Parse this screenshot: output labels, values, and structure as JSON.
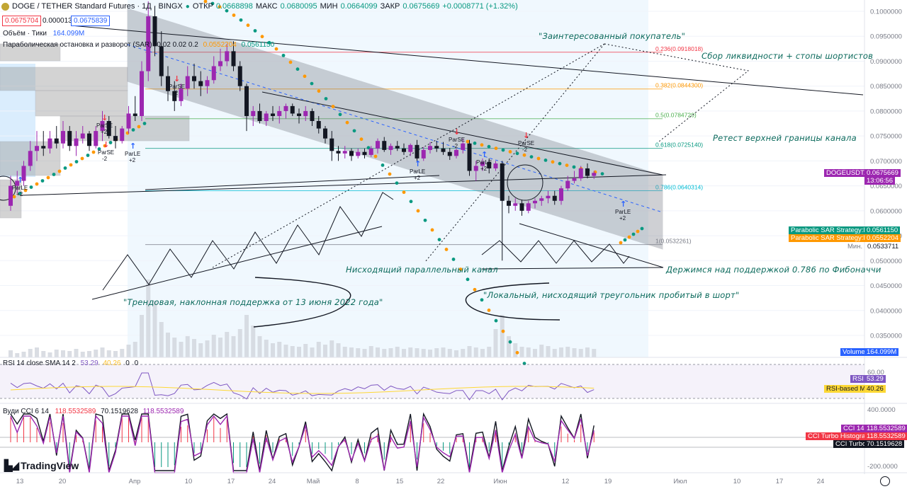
{
  "header": {
    "symbol": "DOGE / TETHER Standard Futures · 1Д · BINGX",
    "open_label": "ОТКР",
    "open_value": "0.0668898",
    "high_label": "МАКС",
    "high_value": "0.0680095",
    "low_label": "МИН",
    "low_value": "0.0664099",
    "close_label": "ЗАКР",
    "close_value": "0.0675669",
    "change": "+0.0008771 (+1.32%)"
  },
  "price_boxes": {
    "bid": "0.0675704",
    "spread": "0.0000135",
    "ask": "0.0675839"
  },
  "indicators": {
    "volume_label": "Объём · Тики",
    "volume_value": "164.099M",
    "sar_label": "Параболическая остановка и разворот (SAR)",
    "sar_params": "0.02 0.02 0.2",
    "sar_v1": "0.0552204",
    "sar_v2": "0.0561150",
    "rsi_label": "RSI 14 close SMA 14 2",
    "rsi_v1": "53.29",
    "rsi_v2": "40.26",
    "rsi_v3": "0",
    "rsi_v4": "0",
    "cci_label": "Вуди CCI 6 14",
    "cci_v1": "118.5532589",
    "cci_v2": "70.1519628",
    "cci_v3": "118.5532589"
  },
  "price_axis": {
    "ticks": [
      "0.1000000",
      "0.0950000",
      "0.0900000",
      "0.0850000",
      "0.0800000",
      "0.0750000",
      "0.0700000",
      "0.0650000",
      "0.0600000",
      "0.0550000",
      "0.0500000",
      "0.0450000",
      "0.0400000",
      "0.0350000"
    ],
    "current_tag": "DOGEUSDT.PS",
    "current_price": "0.0675669",
    "countdown": "13:06:56",
    "sar_tag1_label": "Parabolic SAR Strategy:Plot",
    "sar_tag1_value": "0.0561150",
    "sar_tag2_label": "Parabolic SAR Strategy:Plot",
    "sar_tag2_value": "0.0552204",
    "min_label": "Мин.",
    "min_value": "0.0533711",
    "volume_tag": "Volume",
    "volume_tag_value": "164.099M"
  },
  "rsi_axis": {
    "tick": "60.00",
    "rsi_tag": "RSI",
    "rsi_value": "53.29",
    "ma_tag": "RSI-based MA",
    "ma_value": "40.26"
  },
  "cci_axis": {
    "top": "400.0000",
    "bottom": "-200.0000",
    "cci14_tag": "CCI 14",
    "cci14_value": "118.5532589",
    "hist_tag": "CCI Turbo Histogram",
    "hist_value": "118.5532589",
    "turbo_tag": "CCI Turbo",
    "turbo_value": "70.1519628"
  },
  "time_axis": [
    "13",
    "20",
    "Апр",
    "10",
    "17",
    "24",
    "Май",
    "8",
    "15",
    "22",
    "Июн",
    "12",
    "19",
    "Июл",
    "10",
    "17",
    "24"
  ],
  "fib_levels": [
    {
      "label": "0.236(0.0918018)",
      "price": 0.0918018,
      "color": "#f23645"
    },
    {
      "label": "0.382(0.0844300)",
      "price": 0.08443,
      "color": "#ff9800"
    },
    {
      "label": "0.5(0.0784720)",
      "price": 0.078472,
      "color": "#4caf50"
    },
    {
      "label": "0.618(0.0725140)",
      "price": 0.072514,
      "color": "#089981"
    },
    {
      "label": "0.786(0.0640314)",
      "price": 0.0640314,
      "color": "#00bcd4"
    },
    {
      "label": "1(0.0532261)",
      "price": 0.0532261,
      "color": "#787b86"
    }
  ],
  "signals": [
    {
      "text": "ParSE",
      "qty": "+2",
      "type": "sell"
    },
    {
      "text": "ParSE",
      "qty": "-2",
      "type": "sell"
    },
    {
      "text": "ParLE",
      "qty": "+2",
      "type": "buy"
    },
    {
      "text": "ParSE",
      "qty": "-2",
      "type": "sell"
    },
    {
      "text": "ParLE",
      "qty": "+2",
      "type": "buy"
    },
    {
      "text": "ParSE",
      "qty": "-2",
      "type": "sell"
    },
    {
      "text": "ParLE",
      "qty": "+2",
      "type": "buy"
    },
    {
      "text": "ParSE",
      "qty": "-2",
      "type": "sell"
    },
    {
      "text": "ParLE",
      "qty": "+2",
      "type": "buy"
    },
    {
      "text": "ParLE",
      "qty": "+2",
      "type": "buy"
    }
  ],
  "annotations": {
    "buyer": "\"Заинтересованный покупатель\"",
    "liquidity": "Сбор ликвидности + стопы шортистов",
    "retest": "Ретест верхней границы канала",
    "fib_hold": "Держимся над поддержкой 0.786 по Фибоначчи",
    "channel": "Нисходящий параллельный канал",
    "triangle": "\"Локальный, нисходящий треугольник пробитый в шорт\"",
    "trend": "\"Трендовая, наклонная поддержка от 13 июня 2022 года\""
  },
  "brand": "TradingView",
  "colors": {
    "up": "#089981",
    "down": "#131722",
    "purple": "#9c27b0",
    "sar_teal": "#089981",
    "sar_orange": "#ff9800",
    "channel": "#787b86",
    "accent": "#2962ff"
  },
  "chart_data": {
    "type": "candlestick",
    "title": "DOGE / TETHER Standard Futures · 1Д · BINGX",
    "ylim": [
      0.03,
      0.102
    ],
    "candles": [
      [
        0.061,
        0.067,
        0.06,
        0.065
      ],
      [
        0.065,
        0.068,
        0.0635,
        0.066
      ],
      [
        0.066,
        0.07,
        0.065,
        0.069
      ],
      [
        0.069,
        0.074,
        0.068,
        0.072
      ],
      [
        0.072,
        0.076,
        0.07,
        0.073
      ],
      [
        0.073,
        0.076,
        0.071,
        0.0725
      ],
      [
        0.0725,
        0.076,
        0.0715,
        0.0745
      ],
      [
        0.0745,
        0.077,
        0.0725,
        0.0735
      ],
      [
        0.0735,
        0.078,
        0.0725,
        0.076
      ],
      [
        0.076,
        0.077,
        0.072,
        0.073
      ],
      [
        0.073,
        0.076,
        0.071,
        0.0745
      ],
      [
        0.0745,
        0.077,
        0.0735,
        0.0755
      ],
      [
        0.0755,
        0.076,
        0.072,
        0.073
      ],
      [
        0.073,
        0.077,
        0.0725,
        0.076
      ],
      [
        0.076,
        0.08,
        0.074,
        0.078
      ],
      [
        0.078,
        0.079,
        0.0745,
        0.075
      ],
      [
        0.075,
        0.077,
        0.0725,
        0.074
      ],
      [
        0.074,
        0.077,
        0.0735,
        0.0765
      ],
      [
        0.0765,
        0.081,
        0.0755,
        0.0795
      ],
      [
        0.0795,
        0.083,
        0.078,
        0.079
      ],
      [
        0.079,
        0.09,
        0.078,
        0.088
      ],
      [
        0.088,
        0.102,
        0.086,
        0.099
      ],
      [
        0.099,
        0.101,
        0.091,
        0.093
      ],
      [
        0.093,
        0.096,
        0.085,
        0.087
      ],
      [
        0.087,
        0.089,
        0.082,
        0.084
      ],
      [
        0.084,
        0.086,
        0.08,
        0.082
      ],
      [
        0.082,
        0.0855,
        0.081,
        0.0845
      ],
      [
        0.0845,
        0.089,
        0.083,
        0.087
      ],
      [
        0.087,
        0.0895,
        0.0845,
        0.086
      ],
      [
        0.086,
        0.088,
        0.083,
        0.085
      ],
      [
        0.085,
        0.087,
        0.0835,
        0.0862
      ],
      [
        0.0862,
        0.091,
        0.0855,
        0.089
      ],
      [
        0.089,
        0.0925,
        0.088,
        0.09
      ],
      [
        0.09,
        0.0935,
        0.089,
        0.092
      ],
      [
        0.092,
        0.094,
        0.088,
        0.089
      ],
      [
        0.089,
        0.09,
        0.084,
        0.085
      ],
      [
        0.085,
        0.0855,
        0.076,
        0.079
      ],
      [
        0.079,
        0.081,
        0.077,
        0.08
      ],
      [
        0.08,
        0.0815,
        0.0775,
        0.078
      ],
      [
        0.078,
        0.08,
        0.077,
        0.0795
      ],
      [
        0.0795,
        0.081,
        0.078,
        0.079
      ],
      [
        0.079,
        0.081,
        0.0775,
        0.08
      ],
      [
        0.08,
        0.0815,
        0.0785,
        0.081
      ],
      [
        0.081,
        0.0815,
        0.079,
        0.0795
      ],
      [
        0.0795,
        0.0805,
        0.0775,
        0.079
      ],
      [
        0.079,
        0.081,
        0.078,
        0.08
      ],
      [
        0.08,
        0.0805,
        0.077,
        0.078
      ],
      [
        0.078,
        0.079,
        0.0755,
        0.0765
      ],
      [
        0.0765,
        0.077,
        0.0735,
        0.0745
      ],
      [
        0.0745,
        0.076,
        0.07,
        0.072
      ],
      [
        0.072,
        0.073,
        0.07,
        0.0715
      ],
      [
        0.0715,
        0.073,
        0.0705,
        0.072
      ],
      [
        0.072,
        0.0725,
        0.07,
        0.071
      ],
      [
        0.071,
        0.0725,
        0.0705,
        0.0718
      ],
      [
        0.0718,
        0.0725,
        0.0705,
        0.0712
      ],
      [
        0.0712,
        0.073,
        0.0708,
        0.0725
      ],
      [
        0.0725,
        0.0745,
        0.0715,
        0.074
      ],
      [
        0.074,
        0.0748,
        0.0718,
        0.0722
      ],
      [
        0.0722,
        0.0735,
        0.0712,
        0.073
      ],
      [
        0.073,
        0.074,
        0.072,
        0.0725
      ],
      [
        0.0725,
        0.0735,
        0.0712,
        0.0718
      ],
      [
        0.0718,
        0.0735,
        0.071,
        0.0732
      ],
      [
        0.0732,
        0.0742,
        0.07,
        0.0705
      ],
      [
        0.0705,
        0.0728,
        0.07,
        0.0722
      ],
      [
        0.0722,
        0.0738,
        0.0715,
        0.073
      ],
      [
        0.073,
        0.074,
        0.0718,
        0.0725
      ],
      [
        0.0725,
        0.0738,
        0.0712,
        0.0718
      ],
      [
        0.0718,
        0.0726,
        0.0702,
        0.071
      ],
      [
        0.071,
        0.0725,
        0.0705,
        0.0722
      ],
      [
        0.0722,
        0.0745,
        0.0715,
        0.0735
      ],
      [
        0.0735,
        0.0742,
        0.067,
        0.068
      ],
      [
        0.068,
        0.07,
        0.066,
        0.069
      ],
      [
        0.069,
        0.0705,
        0.068,
        0.0698
      ],
      [
        0.0698,
        0.0705,
        0.0675,
        0.0685
      ],
      [
        0.0685,
        0.07,
        0.068,
        0.0695
      ],
      [
        0.0695,
        0.07,
        0.05,
        0.062
      ],
      [
        0.062,
        0.063,
        0.0595,
        0.061
      ],
      [
        0.061,
        0.0625,
        0.06,
        0.0615
      ],
      [
        0.0615,
        0.0622,
        0.059,
        0.06
      ],
      [
        0.06,
        0.062,
        0.0595,
        0.0615
      ],
      [
        0.0615,
        0.0625,
        0.0605,
        0.062
      ],
      [
        0.062,
        0.063,
        0.061,
        0.0625
      ],
      [
        0.0625,
        0.064,
        0.0615,
        0.063
      ],
      [
        0.063,
        0.064,
        0.0612,
        0.062
      ],
      [
        0.062,
        0.065,
        0.0612,
        0.0645
      ],
      [
        0.0645,
        0.067,
        0.064,
        0.066
      ],
      [
        0.066,
        0.068,
        0.0655,
        0.0665
      ],
      [
        0.0665,
        0.069,
        0.066,
        0.0685
      ],
      [
        0.0685,
        0.0695,
        0.0665,
        0.067
      ],
      [
        0.067,
        0.068,
        0.0664,
        0.0676
      ]
    ],
    "x_start": 15,
    "x_step": 9.25
  }
}
